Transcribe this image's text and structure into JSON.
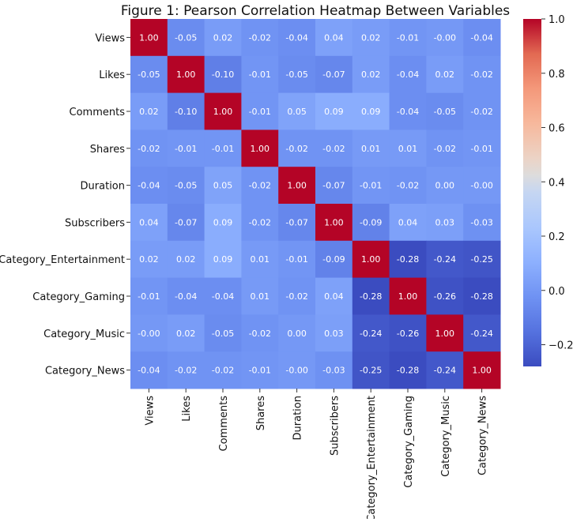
{
  "chart_data": {
    "type": "heatmap",
    "title": "Figure 1: Pearson Correlation Heatmap Between Variables",
    "variables": [
      "Views",
      "Likes",
      "Comments",
      "Shares",
      "Duration",
      "Subscribers",
      "Category_Entertainment",
      "Category_Gaming",
      "Category_Music",
      "Category_News"
    ],
    "values": [
      [
        1.0,
        -0.05,
        0.02,
        -0.02,
        -0.04,
        0.04,
        0.02,
        -0.01,
        -0.0,
        -0.04
      ],
      [
        -0.05,
        1.0,
        -0.1,
        -0.01,
        -0.05,
        -0.07,
        0.02,
        -0.04,
        0.02,
        -0.02
      ],
      [
        0.02,
        -0.1,
        1.0,
        -0.01,
        0.05,
        0.09,
        0.09,
        -0.04,
        -0.05,
        -0.02
      ],
      [
        -0.02,
        -0.01,
        -0.01,
        1.0,
        -0.02,
        -0.02,
        0.01,
        0.01,
        -0.02,
        -0.01
      ],
      [
        -0.04,
        -0.05,
        0.05,
        -0.02,
        1.0,
        -0.07,
        -0.01,
        -0.02,
        0.0,
        -0.0
      ],
      [
        0.04,
        -0.07,
        0.09,
        -0.02,
        -0.07,
        1.0,
        -0.09,
        0.04,
        0.03,
        -0.03
      ],
      [
        0.02,
        0.02,
        0.09,
        0.01,
        -0.01,
        -0.09,
        1.0,
        -0.28,
        -0.24,
        -0.25
      ],
      [
        -0.01,
        -0.04,
        -0.04,
        0.01,
        -0.02,
        0.04,
        -0.28,
        1.0,
        -0.26,
        -0.28
      ],
      [
        -0.0,
        0.02,
        -0.05,
        -0.02,
        0.0,
        0.03,
        -0.24,
        -0.26,
        1.0,
        -0.24
      ],
      [
        -0.04,
        -0.02,
        -0.02,
        -0.01,
        -0.0,
        -0.03,
        -0.25,
        -0.28,
        -0.24,
        1.0
      ]
    ],
    "labels": [
      [
        "1.00",
        "-0.05",
        "0.02",
        "-0.02",
        "-0.04",
        "0.04",
        "0.02",
        "-0.01",
        "-0.00",
        "-0.04"
      ],
      [
        "-0.05",
        "1.00",
        "-0.10",
        "-0.01",
        "-0.05",
        "-0.07",
        "0.02",
        "-0.04",
        "0.02",
        "-0.02"
      ],
      [
        "0.02",
        "-0.10",
        "1.00",
        "-0.01",
        "0.05",
        "0.09",
        "0.09",
        "-0.04",
        "-0.05",
        "-0.02"
      ],
      [
        "-0.02",
        "-0.01",
        "-0.01",
        "1.00",
        "-0.02",
        "-0.02",
        "0.01",
        "0.01",
        "-0.02",
        "-0.01"
      ],
      [
        "-0.04",
        "-0.05",
        "0.05",
        "-0.02",
        "1.00",
        "-0.07",
        "-0.01",
        "-0.02",
        "0.00",
        "-0.00"
      ],
      [
        "0.04",
        "-0.07",
        "0.09",
        "-0.02",
        "-0.07",
        "1.00",
        "-0.09",
        "0.04",
        "0.03",
        "-0.03"
      ],
      [
        "0.02",
        "0.02",
        "0.09",
        "0.01",
        "-0.01",
        "-0.09",
        "1.00",
        "-0.28",
        "-0.24",
        "-0.25"
      ],
      [
        "-0.01",
        "-0.04",
        "-0.04",
        "0.01",
        "-0.02",
        "0.04",
        "-0.28",
        "1.00",
        "-0.26",
        "-0.28"
      ],
      [
        "-0.00",
        "0.02",
        "-0.05",
        "-0.02",
        "0.00",
        "0.03",
        "-0.24",
        "-0.26",
        "1.00",
        "-0.24"
      ],
      [
        "-0.04",
        "-0.02",
        "-0.02",
        "-0.01",
        "-0.00",
        "-0.03",
        "-0.25",
        "-0.28",
        "-0.24",
        "1.00"
      ]
    ],
    "color_range": [
      -0.28,
      1.0
    ],
    "colormap": "coolwarm",
    "colorbar_ticks": [
      {
        "value": 1.0,
        "label": "1.0"
      },
      {
        "value": 0.8,
        "label": "0.8"
      },
      {
        "value": 0.6,
        "label": "0.6"
      },
      {
        "value": 0.4,
        "label": "0.4"
      },
      {
        "value": 0.2,
        "label": "0.2"
      },
      {
        "value": 0.0,
        "label": "0.0"
      },
      {
        "value": -0.2,
        "label": "−0.2"
      }
    ]
  }
}
